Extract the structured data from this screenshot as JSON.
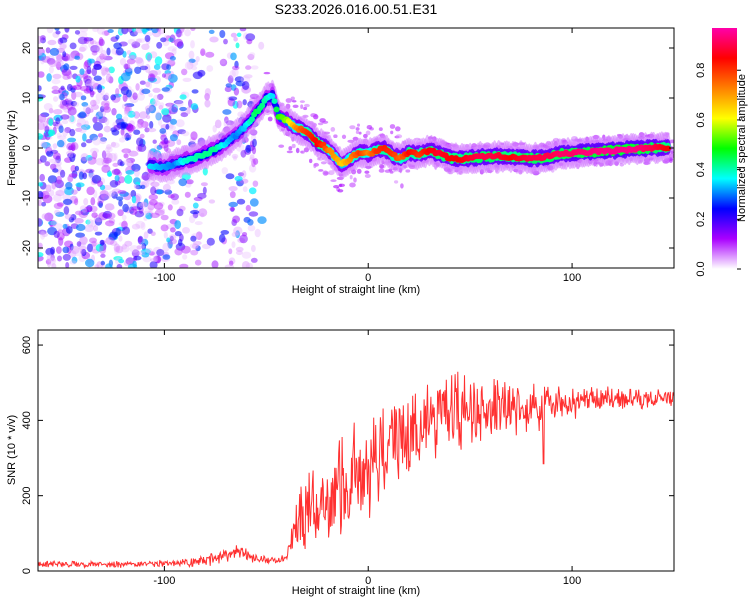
{
  "title": "S233.2026.016.00.51.E31",
  "chart_data": [
    {
      "type": "heatmap",
      "title": "S233.2026.016.00.51.E31",
      "xlabel": "Height of straight line (km)",
      "ylabel": "Frequency (Hz)",
      "xlim": [
        -162,
        150
      ],
      "ylim": [
        -24,
        24
      ],
      "xticks": [
        -100,
        0,
        100
      ],
      "yticks": [
        -20,
        -10,
        0,
        10,
        20
      ],
      "colorbar": {
        "label": "Normalized spectral amplitude",
        "range": [
          0,
          0.97
        ],
        "ticks": [
          0.0,
          0.2,
          0.4,
          0.6,
          0.8
        ],
        "tick_labels": [
          "0.0",
          "0.2",
          "0.4",
          "0.6",
          "0.8"
        ],
        "colors": [
          "#ffffff",
          "#aa00ff",
          "#0000ff",
          "#00ffff",
          "#00ff00",
          "#ffff00",
          "#ff8000",
          "#ff0000",
          "#ff00aa"
        ]
      },
      "ridge": {
        "description": "frequency of peak spectral amplitude vs height",
        "x": [
          -107,
          -100,
          -95,
          -90,
          -85,
          -80,
          -75,
          -70,
          -65,
          -60,
          -55,
          -50,
          -47,
          -44,
          -40,
          -36,
          -32,
          -28,
          -25,
          -22,
          -19,
          -16,
          -13,
          -10,
          -7,
          -4,
          0,
          4,
          8,
          12,
          16,
          20,
          25,
          30,
          35,
          40,
          45,
          50,
          55,
          60,
          65,
          70,
          75,
          80,
          85,
          90,
          95,
          100,
          110,
          120,
          130,
          140,
          147
        ],
        "y": [
          -3.5,
          -3.8,
          -3.2,
          -2.5,
          -2.0,
          -1.2,
          -0.2,
          1.0,
          2.5,
          4.5,
          7.0,
          9.8,
          10.5,
          6.5,
          5.5,
          4.2,
          3.5,
          2.5,
          1.0,
          0.5,
          -0.5,
          -2.0,
          -3.2,
          -2.5,
          -1.5,
          -0.8,
          -1.2,
          -0.5,
          -0.2,
          -1.5,
          -2.0,
          -1.0,
          -1.2,
          -0.5,
          -1.2,
          -2.0,
          -2.2,
          -2.0,
          -1.8,
          -1.8,
          -1.6,
          -1.8,
          -1.9,
          -2.1,
          -2.0,
          -1.6,
          -1.2,
          -1.0,
          -0.8,
          -0.5,
          -0.2,
          0.0,
          0.2
        ],
        "amplitude": [
          0.35,
          0.32,
          0.3,
          0.38,
          0.4,
          0.42,
          0.42,
          0.35,
          0.3,
          0.35,
          0.45,
          0.4,
          0.35,
          0.5,
          0.55,
          0.7,
          0.78,
          0.82,
          0.85,
          0.8,
          0.72,
          0.7,
          0.65,
          0.7,
          0.75,
          0.8,
          0.72,
          0.8,
          0.82,
          0.8,
          0.75,
          0.85,
          0.8,
          0.85,
          0.88,
          0.85,
          0.85,
          0.88,
          0.9,
          0.9,
          0.88,
          0.85,
          0.88,
          0.9,
          0.9,
          0.9,
          0.92,
          0.92,
          0.94,
          0.95,
          0.95,
          0.9,
          0.85
        ]
      },
      "noise_note": "broadband noise (amplitude ~0.05-0.4) spread over full frequency range for heights below -55 km"
    },
    {
      "type": "line",
      "xlabel": "Height of straight line (km)",
      "ylabel": "SNR (10 * v/v)",
      "xlim": [
        -162,
        150
      ],
      "ylim": [
        0,
        640
      ],
      "xticks": [
        -100,
        0,
        100
      ],
      "yticks": [
        0,
        200,
        400,
        600
      ],
      "series": [
        {
          "name": "SNR",
          "color": "#ff3030",
          "envelope_x": [
            -162,
            -140,
            -120,
            -100,
            -90,
            -80,
            -75,
            -70,
            -65,
            -60,
            -55,
            -50,
            -45,
            -40,
            -38,
            -35,
            -30,
            -25,
            -20,
            -15,
            -10,
            -5,
            0,
            5,
            10,
            15,
            20,
            25,
            30,
            35,
            40,
            45,
            50,
            55,
            60,
            65,
            70,
            75,
            80,
            85,
            90,
            95,
            100,
            110,
            120,
            130,
            140,
            150
          ],
          "envelope_mean": [
            18,
            18,
            18,
            20,
            22,
            28,
            35,
            45,
            48,
            42,
            35,
            30,
            28,
            32,
            70,
            120,
            150,
            170,
            190,
            210,
            230,
            250,
            270,
            290,
            330,
            350,
            370,
            390,
            400,
            405,
            410,
            415,
            420,
            425,
            430,
            435,
            430,
            440,
            440,
            440,
            445,
            440,
            445,
            450,
            455,
            455,
            460,
            460
          ],
          "envelope_spread": [
            10,
            10,
            10,
            12,
            14,
            18,
            25,
            30,
            30,
            25,
            18,
            12,
            10,
            15,
            60,
            110,
            130,
            130,
            140,
            150,
            160,
            170,
            160,
            150,
            150,
            150,
            150,
            150,
            140,
            130,
            130,
            120,
            110,
            110,
            100,
            90,
            90,
            80,
            80,
            70,
            60,
            55,
            50,
            45,
            40,
            35,
            30,
            30
          ],
          "dips": [
            {
              "x": 86,
              "y": 285
            }
          ]
        }
      ]
    }
  ]
}
